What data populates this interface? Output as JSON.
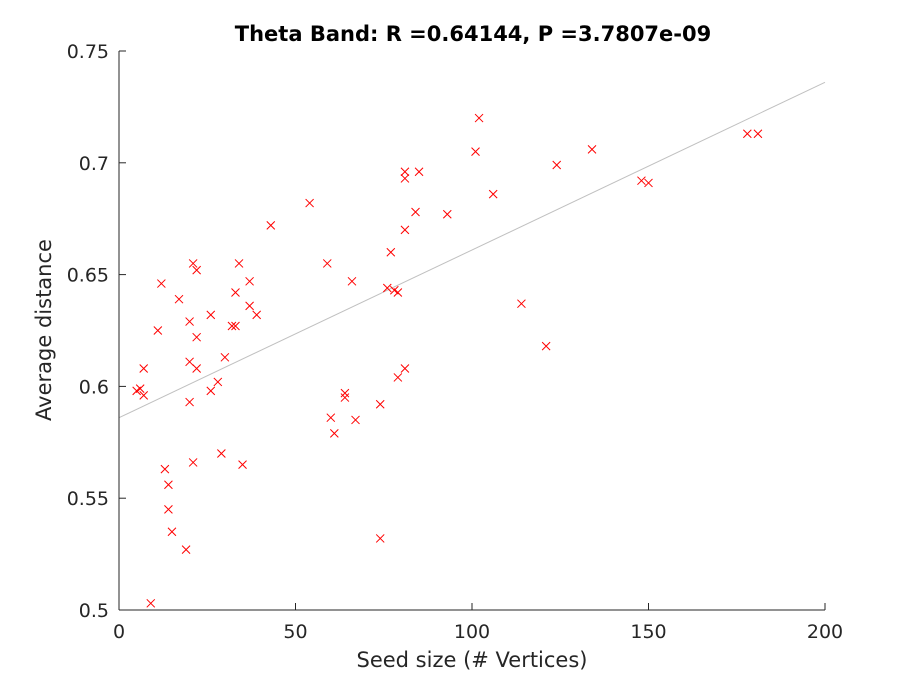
{
  "chart_data": {
    "type": "scatter",
    "title": "Theta Band: R =0.64144, P =3.7807e-09",
    "xlabel": "Seed size (# Vertices)",
    "ylabel": "Average distance",
    "xlim": [
      0,
      200
    ],
    "ylim": [
      0.5,
      0.75
    ],
    "xticks": [
      "0",
      "50",
      "100",
      "150",
      "200"
    ],
    "yticks": [
      "0.5",
      "0.55",
      "0.6",
      "0.65",
      "0.7",
      "0.75"
    ],
    "grid": false,
    "marker": "x",
    "marker_color": "#ff0000",
    "fit_line": {
      "color": "#c0c0c0",
      "x": [
        0,
        200
      ],
      "y": [
        0.586,
        0.736
      ]
    },
    "points": [
      [
        5,
        0.598
      ],
      [
        6,
        0.599
      ],
      [
        7,
        0.596
      ],
      [
        7,
        0.608
      ],
      [
        9,
        0.503
      ],
      [
        11,
        0.625
      ],
      [
        12,
        0.646
      ],
      [
        13,
        0.563
      ],
      [
        14,
        0.556
      ],
      [
        14,
        0.545
      ],
      [
        15,
        0.535
      ],
      [
        17,
        0.639
      ],
      [
        19,
        0.527
      ],
      [
        20,
        0.629
      ],
      [
        20,
        0.611
      ],
      [
        20,
        0.593
      ],
      [
        21,
        0.655
      ],
      [
        21,
        0.566
      ],
      [
        22,
        0.652
      ],
      [
        22,
        0.622
      ],
      [
        22,
        0.608
      ],
      [
        26,
        0.632
      ],
      [
        26,
        0.598
      ],
      [
        28,
        0.602
      ],
      [
        29,
        0.57
      ],
      [
        30,
        0.613
      ],
      [
        32,
        0.627
      ],
      [
        33,
        0.627
      ],
      [
        33,
        0.642
      ],
      [
        34,
        0.655
      ],
      [
        35,
        0.565
      ],
      [
        37,
        0.647
      ],
      [
        37,
        0.636
      ],
      [
        39,
        0.632
      ],
      [
        43,
        0.672
      ],
      [
        54,
        0.682
      ],
      [
        59,
        0.655
      ],
      [
        60,
        0.586
      ],
      [
        61,
        0.579
      ],
      [
        64,
        0.597
      ],
      [
        64,
        0.595
      ],
      [
        66,
        0.647
      ],
      [
        67,
        0.585
      ],
      [
        74,
        0.592
      ],
      [
        74,
        0.532
      ],
      [
        76,
        0.644
      ],
      [
        77,
        0.66
      ],
      [
        78,
        0.643
      ],
      [
        79,
        0.604
      ],
      [
        79,
        0.642
      ],
      [
        81,
        0.696
      ],
      [
        81,
        0.693
      ],
      [
        81,
        0.67
      ],
      [
        81,
        0.608
      ],
      [
        84,
        0.678
      ],
      [
        85,
        0.696
      ],
      [
        93,
        0.677
      ],
      [
        101,
        0.705
      ],
      [
        102,
        0.72
      ],
      [
        106,
        0.686
      ],
      [
        114,
        0.637
      ],
      [
        121,
        0.618
      ],
      [
        124,
        0.699
      ],
      [
        134,
        0.706
      ],
      [
        148,
        0.692
      ],
      [
        150,
        0.691
      ],
      [
        178,
        0.713
      ],
      [
        181,
        0.713
      ]
    ]
  }
}
